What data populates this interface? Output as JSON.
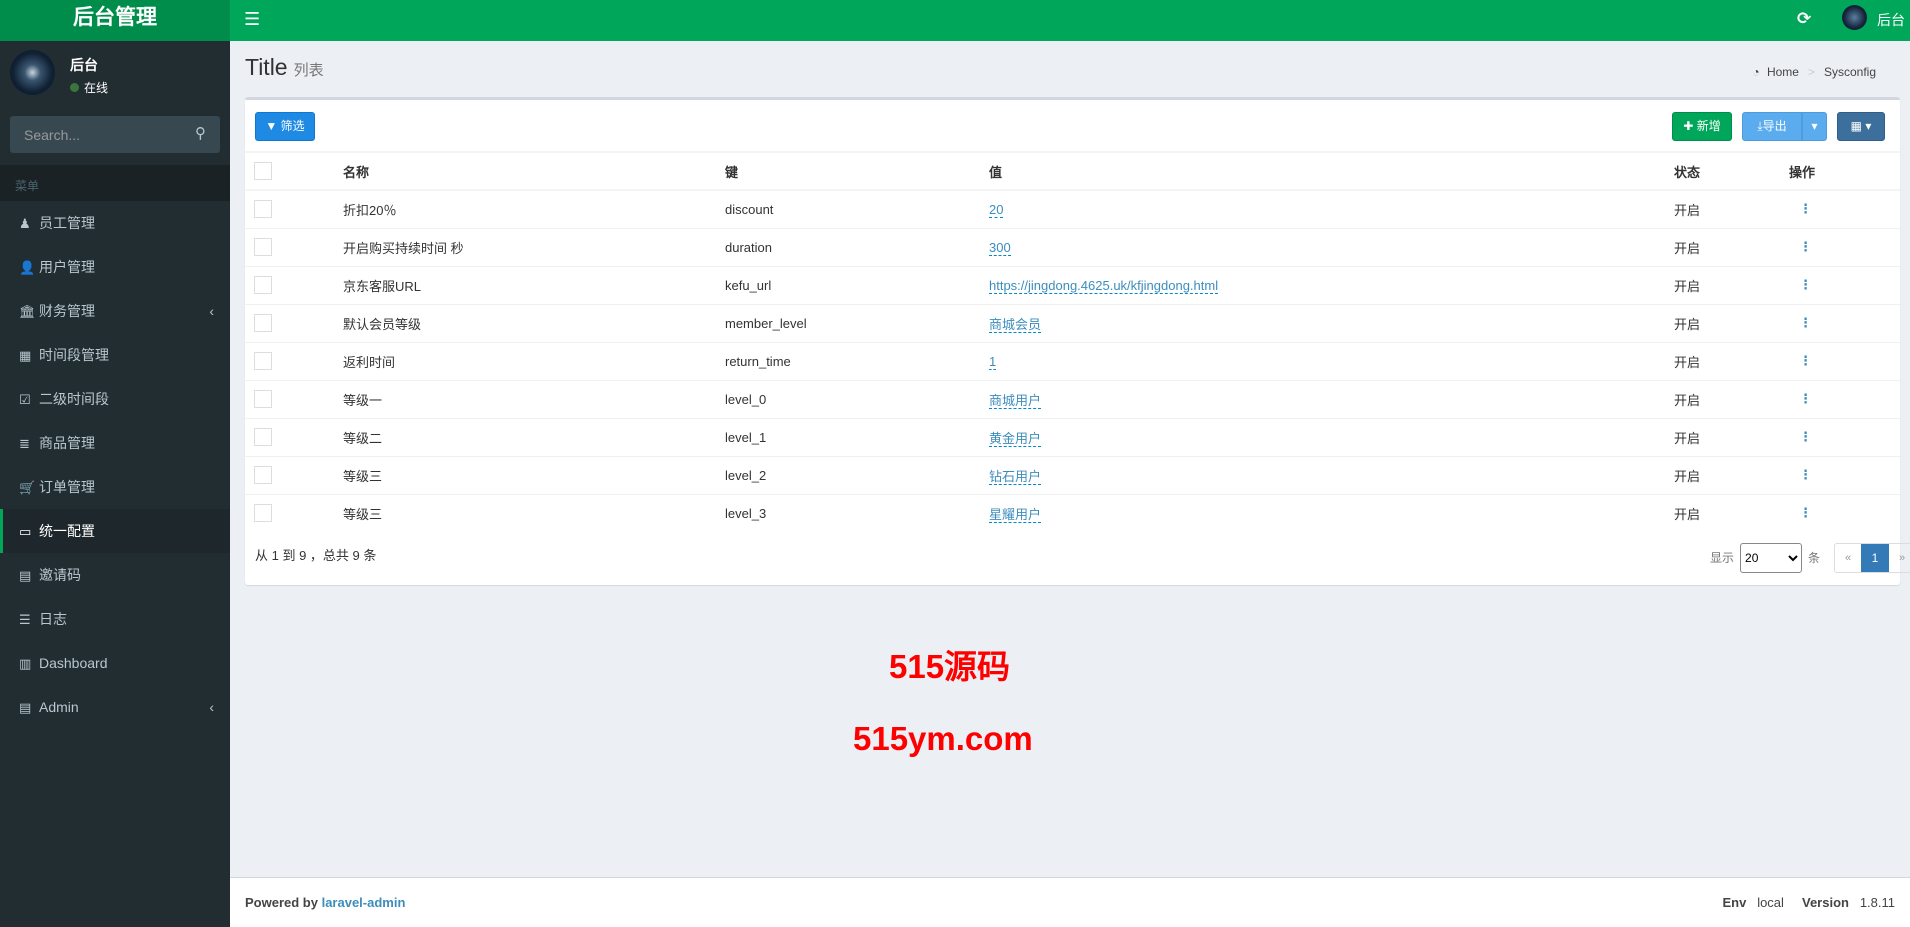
{
  "header": {
    "logo": "后台管理",
    "user": "后台"
  },
  "sidebar": {
    "user": {
      "name": "后台",
      "status": "在线"
    },
    "search_placeholder": "Search...",
    "menu_header": "菜单",
    "items": [
      {
        "label": "员工管理",
        "icon": "♟"
      },
      {
        "label": "用户管理",
        "icon": "👤"
      },
      {
        "label": "财务管理",
        "icon": "🏛",
        "chevron": true
      },
      {
        "label": "时间段管理",
        "icon": "▦"
      },
      {
        "label": "二级时间段",
        "icon": "☑"
      },
      {
        "label": "商品管理",
        "icon": "≣"
      },
      {
        "label": "订单管理",
        "icon": "🛒"
      },
      {
        "label": "统一配置",
        "icon": "▭",
        "active": true
      },
      {
        "label": "邀请码",
        "icon": "▤"
      },
      {
        "label": "日志",
        "icon": "☰"
      },
      {
        "label": "Dashboard",
        "icon": "▥"
      },
      {
        "label": "Admin",
        "icon": "▤",
        "chevron": true
      }
    ]
  },
  "page": {
    "title": "Title",
    "subtitle": "列表",
    "breadcrumb": [
      "Home",
      "Sysconfig"
    ]
  },
  "toolbar": {
    "filter": "筛选",
    "new": "新增",
    "export": "导出"
  },
  "table": {
    "headers": [
      "名称",
      "键",
      "值",
      "状态",
      "操作"
    ],
    "rows": [
      [
        "折扣20％",
        "discount",
        "20",
        "开启"
      ],
      [
        "开启购买持续时间 秒",
        "duration",
        "300",
        "开启"
      ],
      [
        "京东客服URL",
        "kefu_url",
        "https://jingdong.4625.uk/kfjingdong.html",
        "开启"
      ],
      [
        "默认会员等级",
        "member_level",
        "商城会员",
        "开启"
      ],
      [
        "返利时间",
        "return_time",
        "1",
        "开启"
      ],
      [
        "等级一",
        "level_0",
        "商城用户",
        "开启"
      ],
      [
        "等级二",
        "level_1",
        "黄金用户",
        "开启"
      ],
      [
        "等级三",
        "level_2",
        "钻石用户",
        "开启"
      ],
      [
        "等级三",
        "level_3",
        "星耀用户",
        "开启"
      ]
    ]
  },
  "pagination": {
    "summary": "从 1 到 9 ，总共 9 条",
    "show": "显示",
    "per_page": "20",
    "unit": "条",
    "prev": "«",
    "current": "1",
    "next": "»"
  },
  "footer": {
    "powered": "Powered by",
    "link": "laravel-admin",
    "env_label": "Env",
    "env": "local",
    "version_label": "Version",
    "version": "1.8.11"
  },
  "watermark": {
    "line1": "515源码",
    "line2": "515ym.com"
  },
  "colors": {
    "brand": "#00a65a",
    "sidebar": "#222d32",
    "link": "#3c8dbc"
  }
}
